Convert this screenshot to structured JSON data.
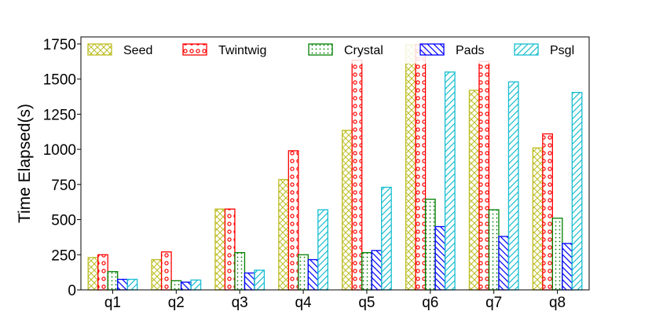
{
  "chart_data": {
    "type": "bar",
    "title": "",
    "xlabel": "",
    "ylabel": "Time Elapsed(s)",
    "categories": [
      "q1",
      "q2",
      "q3",
      "q4",
      "q5",
      "q6",
      "q7",
      "q8"
    ],
    "ylim": [
      0,
      1800
    ],
    "yticks": [
      0,
      250,
      500,
      750,
      1000,
      1250,
      1500,
      1750
    ],
    "grid": false,
    "legend_position": "top",
    "series": [
      {
        "name": "Seed",
        "color": "#bcbd22",
        "pattern": "crosshatch",
        "values": [
          230,
          215,
          575,
          785,
          1135,
          1745,
          1420,
          1010
        ]
      },
      {
        "name": "Twintwig",
        "color": "#ff0000",
        "pattern": "circles",
        "values": [
          250,
          270,
          575,
          990,
          1635,
          1745,
          1625,
          1110
        ]
      },
      {
        "name": "Crystal",
        "color": "#008000",
        "pattern": "dots",
        "values": [
          130,
          65,
          265,
          250,
          265,
          645,
          570,
          510
        ]
      },
      {
        "name": "Pads",
        "color": "#0000ff",
        "pattern": "backslash",
        "values": [
          75,
          55,
          120,
          215,
          280,
          450,
          380,
          330
        ]
      },
      {
        "name": "Psgl",
        "color": "#17becf",
        "pattern": "slash",
        "values": [
          75,
          70,
          140,
          570,
          730,
          1550,
          1480,
          1405
        ]
      }
    ]
  }
}
